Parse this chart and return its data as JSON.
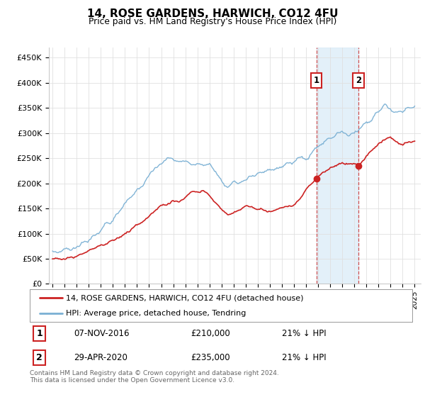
{
  "title": "14, ROSE GARDENS, HARWICH, CO12 4FU",
  "subtitle": "Price paid vs. HM Land Registry's House Price Index (HPI)",
  "ylabel_ticks": [
    "£0",
    "£50K",
    "£100K",
    "£150K",
    "£200K",
    "£250K",
    "£300K",
    "£350K",
    "£400K",
    "£450K"
  ],
  "ylim": [
    0,
    470000
  ],
  "yticks": [
    0,
    50000,
    100000,
    150000,
    200000,
    250000,
    300000,
    350000,
    400000,
    450000
  ],
  "hpi_color": "#7ab0d4",
  "price_color": "#cc2222",
  "legend_label1": "14, ROSE GARDENS, HARWICH, CO12 4FU (detached house)",
  "legend_label2": "HPI: Average price, detached house, Tendring",
  "sale1_year": 2016.85,
  "sale2_year": 2020.33,
  "sale1_price_val": 210000,
  "sale2_price_val": 235000,
  "sale1_date": "07-NOV-2016",
  "sale1_price": "£210,000",
  "sale1_hpi": "21% ↓ HPI",
  "sale2_date": "29-APR-2020",
  "sale2_price": "£235,000",
  "sale2_hpi": "21% ↓ HPI",
  "footer": "Contains HM Land Registry data © Crown copyright and database right 2024.\nThis data is licensed under the Open Government Licence v3.0.",
  "background_color": "#ffffff",
  "grid_color": "#e0e0e0",
  "shade_color": "#d8eaf7"
}
